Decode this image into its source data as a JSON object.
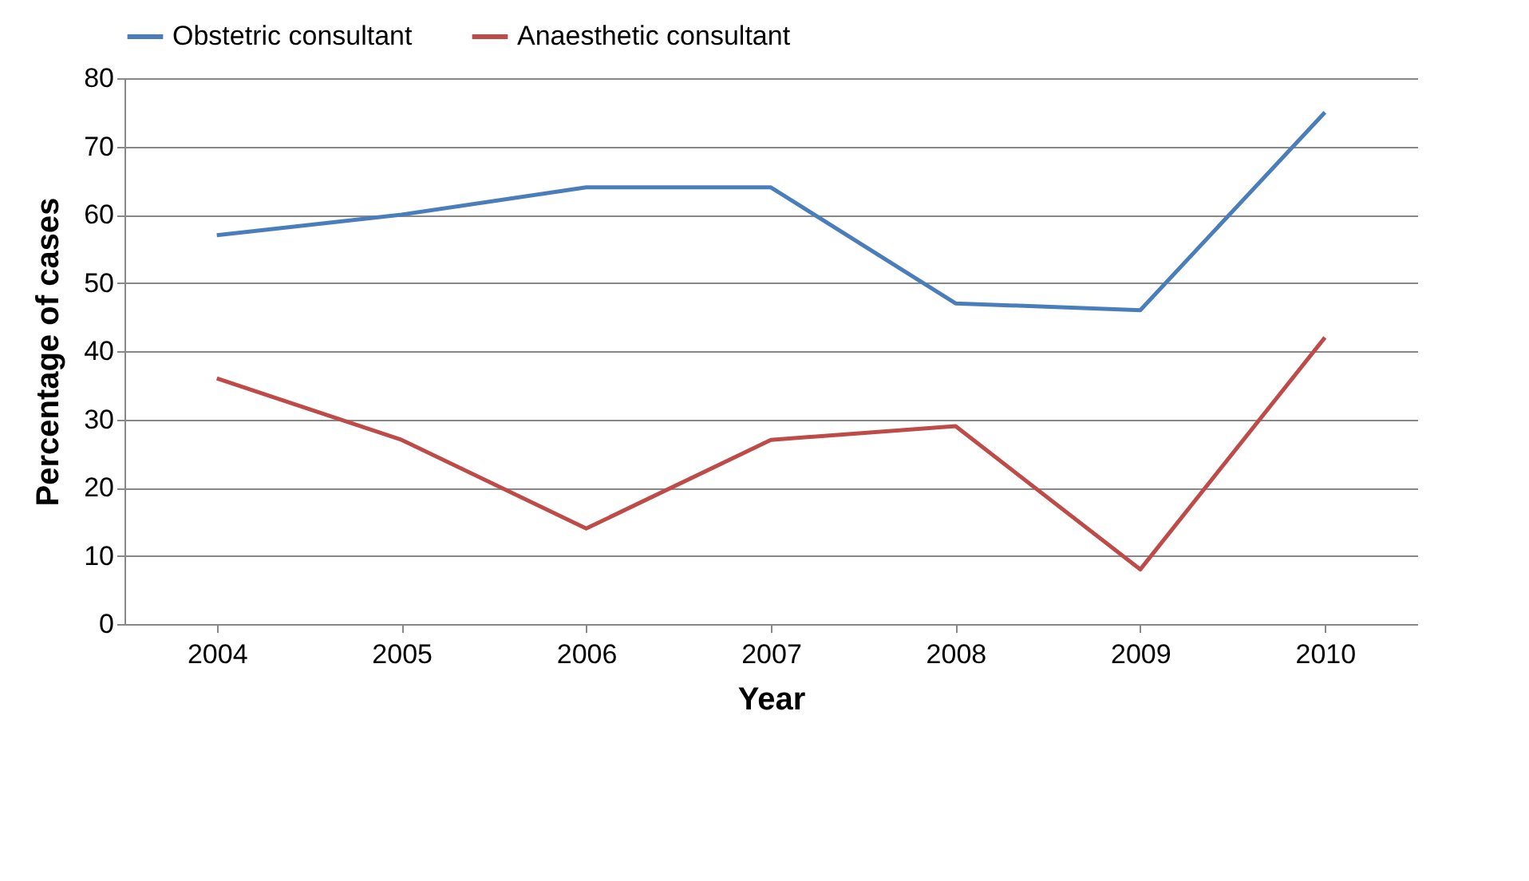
{
  "chart_data": {
    "type": "line",
    "xlabel": "Year",
    "ylabel": "Percentage of cases",
    "categories": [
      "2004",
      "2005",
      "2006",
      "2007",
      "2008",
      "2009",
      "2010"
    ],
    "series": [
      {
        "name": "Obstetric consultant",
        "color": "#4a7ebb",
        "values": [
          57,
          60,
          64,
          64,
          47,
          46,
          75
        ]
      },
      {
        "name": "Anaesthetic consultant",
        "color": "#be4b48",
        "values": [
          36,
          27,
          14,
          27,
          29,
          8,
          42
        ]
      }
    ],
    "ylim": [
      0,
      80
    ],
    "yticks": [
      0,
      10,
      20,
      30,
      40,
      50,
      60,
      70,
      80
    ],
    "grid": "y",
    "legend": "top"
  }
}
